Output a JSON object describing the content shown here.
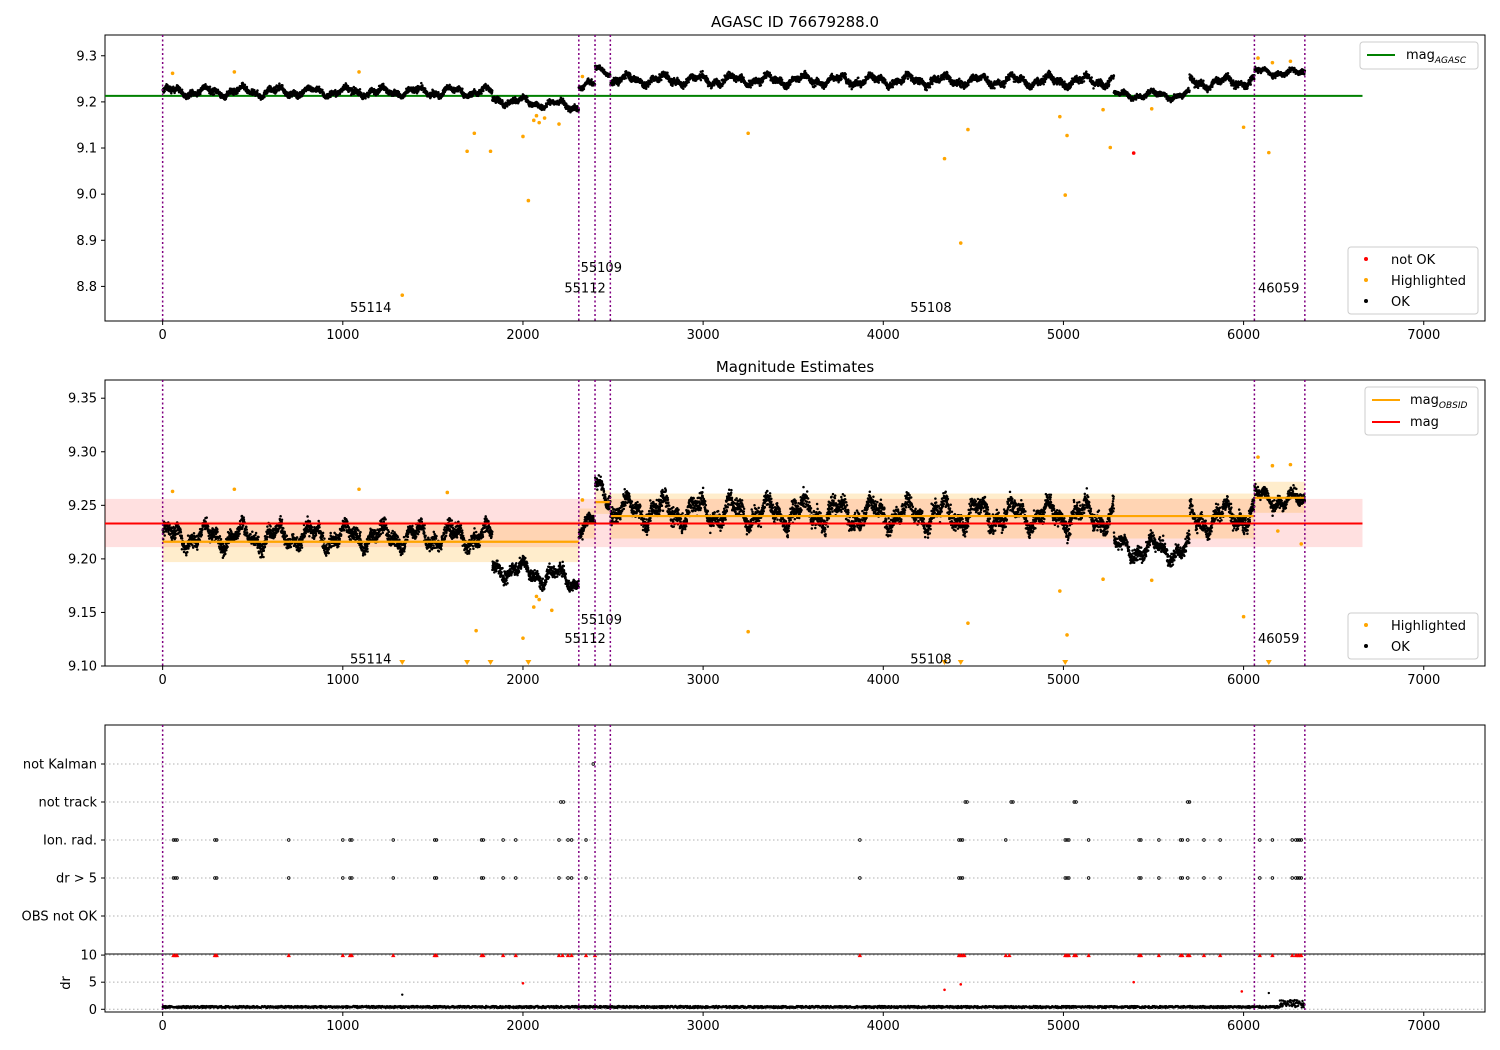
{
  "figure": {
    "title": "AGASC ID 76679288.0",
    "colors": {
      "ok": "#000000",
      "highlighted": "#ffa500",
      "not_ok": "#ff0000",
      "obsid_boundary": "#800080",
      "mag_agasc": "#008000",
      "mag_obsid": "#ffa500",
      "mag": "#ff0000",
      "grid": "#b0b0b0"
    }
  },
  "chart_data": [
    {
      "type": "scatter",
      "title": "AGASC ID 76679288.0",
      "xlim": [
        -320,
        7340
      ],
      "ylim": [
        8.725,
        9.345
      ],
      "xticks": [
        0,
        1000,
        2000,
        3000,
        4000,
        5000,
        6000,
        7000
      ],
      "yticks": [
        8.8,
        8.9,
        9.0,
        9.1,
        9.2,
        9.3
      ],
      "ytick_labels": [
        "8.8",
        "8.9",
        "9.0",
        "9.1",
        "9.2",
        "9.3"
      ],
      "legend_upper": {
        "position": "upper-right",
        "entries": [
          {
            "label": "mag",
            "sub": "AGASC",
            "kind": "line",
            "color": "#008000"
          }
        ]
      },
      "legend_lower": {
        "position": "lower-right",
        "entries": [
          {
            "label": "not OK",
            "kind": "dot",
            "color": "#ff0000"
          },
          {
            "label": "Highlighted",
            "kind": "dot",
            "color": "#ffa500"
          },
          {
            "label": "OK",
            "kind": "dot",
            "color": "#000000"
          }
        ]
      },
      "hlines": [
        {
          "name": "mag_AGASC",
          "y": 9.213,
          "x": [
            -320,
            6660
          ],
          "color": "#008000"
        }
      ],
      "obsid_labels": [
        {
          "text": "55114",
          "x": 1040,
          "y": 8.755
        },
        {
          "text": "55112",
          "x": 2230,
          "y": 8.798
        },
        {
          "text": "55109",
          "x": 2320,
          "y": 8.842
        },
        {
          "text": "55108",
          "x": 4150,
          "y": 8.755
        },
        {
          "text": "46059",
          "x": 6080,
          "y": 8.798
        }
      ],
      "ok_segments": [
        {
          "x": [
            0,
            1830
          ],
          "level": 9.222,
          "amp": 0.014,
          "ramp_to": 9.222
        },
        {
          "x": [
            1830,
            2310
          ],
          "level": 9.205,
          "amp": 0.013,
          "ramp_to": 9.19
        },
        {
          "x": [
            2310,
            2400
          ],
          "level": 9.235,
          "amp": 0.012,
          "ramp_to": 9.235
        },
        {
          "x": [
            2400,
            2485
          ],
          "level": 9.272,
          "amp": 0.01,
          "ramp_to": 9.265
        },
        {
          "x": [
            2485,
            5280
          ],
          "level": 9.248,
          "amp": 0.016,
          "ramp_to": 9.245
        },
        {
          "x": [
            5280,
            5700
          ],
          "level": 9.215,
          "amp": 0.012,
          "ramp_to": 9.215
        },
        {
          "x": [
            5700,
            6060
          ],
          "level": 9.24,
          "amp": 0.016,
          "ramp_to": 9.245
        },
        {
          "x": [
            6060,
            6340
          ],
          "level": 9.265,
          "amp": 0.011,
          "ramp_to": 9.262
        }
      ],
      "highlighted": [
        [
          55,
          9.262
        ],
        [
          398,
          9.265
        ],
        [
          1090,
          9.265
        ],
        [
          1330,
          8.781
        ],
        [
          1690,
          9.093
        ],
        [
          1730,
          9.132
        ],
        [
          1820,
          9.093
        ],
        [
          2000,
          9.125
        ],
        [
          2030,
          8.986
        ],
        [
          2060,
          9.16
        ],
        [
          2075,
          9.17
        ],
        [
          2090,
          9.155
        ],
        [
          2120,
          9.165
        ],
        [
          2200,
          9.152
        ],
        [
          2330,
          9.255
        ],
        [
          3250,
          9.132
        ],
        [
          4340,
          9.077
        ],
        [
          4430,
          8.894
        ],
        [
          4470,
          9.14
        ],
        [
          4980,
          9.168
        ],
        [
          5010,
          8.998
        ],
        [
          5020,
          9.127
        ],
        [
          5220,
          9.183
        ],
        [
          5260,
          9.101
        ],
        [
          5490,
          9.185
        ],
        [
          6000,
          9.145
        ],
        [
          6080,
          9.295
        ],
        [
          6140,
          9.09
        ],
        [
          6160,
          9.285
        ],
        [
          6260,
          9.288
        ]
      ],
      "not_ok": [
        [
          5390,
          9.089
        ]
      ],
      "xlabel": "",
      "ylabel": ""
    },
    {
      "type": "scatter",
      "title": "Magnitude Estimates",
      "xlim": [
        -320,
        7340
      ],
      "ylim": [
        9.1,
        9.367
      ],
      "xticks": [
        0,
        1000,
        2000,
        3000,
        4000,
        5000,
        6000,
        7000
      ],
      "yticks": [
        9.1,
        9.15,
        9.2,
        9.25,
        9.3,
        9.35
      ],
      "ytick_labels": [
        "9.10",
        "9.15",
        "9.20",
        "9.25",
        "9.30",
        "9.35"
      ],
      "legend_upper": {
        "position": "upper-right",
        "entries": [
          {
            "label": "mag",
            "sub": "OBSID",
            "kind": "line",
            "color": "#ffa500"
          },
          {
            "label": "mag",
            "kind": "line",
            "color": "#ff0000"
          }
        ]
      },
      "legend_lower": {
        "position": "lower-right",
        "entries": [
          {
            "label": "Highlighted",
            "kind": "dot",
            "color": "#ffa500"
          },
          {
            "label": "OK",
            "kind": "dot",
            "color": "#000000"
          }
        ]
      },
      "mag_band": {
        "y": 9.233,
        "lo": 9.211,
        "hi": 9.256,
        "x": [
          -320,
          6660
        ]
      },
      "obsid_steps": [
        {
          "x": [
            0,
            2310
          ],
          "y": 9.216,
          "lo": 9.197,
          "hi": 9.235
        },
        {
          "x": [
            2310,
            2400
          ],
          "y": 9.233,
          "lo": 9.219,
          "hi": 9.247
        },
        {
          "x": [
            2400,
            2485
          ],
          "y": 9.253,
          "lo": 9.242,
          "hi": 9.264
        },
        {
          "x": [
            2485,
            6060
          ],
          "y": 9.24,
          "lo": 9.219,
          "hi": 9.261
        },
        {
          "x": [
            6060,
            6340
          ],
          "y": 9.257,
          "lo": 9.243,
          "hi": 9.272
        }
      ],
      "obsid_labels": [
        {
          "text": "55114",
          "x": 1040,
          "y": 9.107
        },
        {
          "text": "55112",
          "x": 2230,
          "y": 9.126
        },
        {
          "text": "55109",
          "x": 2320,
          "y": 9.144
        },
        {
          "text": "55108",
          "x": 4150,
          "y": 9.107
        },
        {
          "text": "46059",
          "x": 6080,
          "y": 9.126
        }
      ],
      "ok_segments": [
        {
          "x": [
            0,
            1830
          ],
          "level": 9.221,
          "amp": 0.015,
          "ramp_to": 9.221
        },
        {
          "x": [
            1830,
            2310
          ],
          "level": 9.193,
          "amp": 0.013,
          "ramp_to": 9.18
        },
        {
          "x": [
            2310,
            2400
          ],
          "level": 9.23,
          "amp": 0.012,
          "ramp_to": 9.232
        },
        {
          "x": [
            2400,
            2485
          ],
          "level": 9.268,
          "amp": 0.013,
          "ramp_to": 9.262
        },
        {
          "x": [
            2485,
            5280
          ],
          "level": 9.245,
          "amp": 0.018,
          "ramp_to": 9.24
        },
        {
          "x": [
            5280,
            5700
          ],
          "level": 9.21,
          "amp": 0.014,
          "ramp_to": 9.208
        },
        {
          "x": [
            5700,
            6060
          ],
          "level": 9.236,
          "amp": 0.017,
          "ramp_to": 9.242
        },
        {
          "x": [
            6060,
            6340
          ],
          "level": 9.258,
          "amp": 0.012,
          "ramp_to": 9.253
        }
      ],
      "highlighted": [
        [
          55,
          9.263
        ],
        [
          398,
          9.265
        ],
        [
          1090,
          9.265
        ],
        [
          1580,
          9.262
        ],
        [
          1740,
          9.133
        ],
        [
          2000,
          9.126
        ],
        [
          2060,
          9.155
        ],
        [
          2075,
          9.165
        ],
        [
          2090,
          9.162
        ],
        [
          2160,
          9.152
        ],
        [
          2330,
          9.255
        ],
        [
          3250,
          9.132
        ],
        [
          4470,
          9.14
        ],
        [
          4980,
          9.17
        ],
        [
          5020,
          9.129
        ],
        [
          5220,
          9.181
        ],
        [
          5490,
          9.18
        ],
        [
          6000,
          9.146
        ],
        [
          6080,
          9.295
        ],
        [
          6160,
          9.287
        ],
        [
          6260,
          9.288
        ],
        [
          6320,
          9.214
        ],
        [
          6190,
          9.226
        ]
      ],
      "below_range": [
        1330,
        1690,
        1820,
        2030,
        4340,
        4430,
        5010,
        6140
      ],
      "xlabel": "",
      "ylabel": ""
    },
    {
      "type": "scatter",
      "title": "",
      "xlim": [
        -320,
        7340
      ],
      "xticks": [
        0,
        1000,
        2000,
        3000,
        4000,
        5000,
        6000,
        7000
      ],
      "flag_rows": [
        "not Kalman",
        "not track",
        "Ion. rad.",
        "dr > 5",
        "OBS not OK"
      ],
      "flags": {
        "not Kalman": [
          2390
        ],
        "not track": [
          2210,
          2225,
          4455,
          4465,
          4710,
          4720,
          5060,
          5070,
          5690,
          5700
        ],
        "Ion. rad.": [
          60,
          70,
          80,
          290,
          300,
          700,
          1000,
          1040,
          1050,
          1280,
          1510,
          1520,
          1770,
          1780,
          1890,
          1960,
          2200,
          2250,
          2270,
          2350,
          3870,
          4420,
          4430,
          4440,
          4680,
          5010,
          5020,
          5030,
          5140,
          5420,
          5430,
          5530,
          5650,
          5660,
          5690,
          5780,
          5870,
          6090,
          6160,
          6270,
          6290,
          6300,
          6310,
          6320
        ],
        "dr > 5": [
          60,
          70,
          80,
          290,
          300,
          700,
          1000,
          1040,
          1050,
          1280,
          1510,
          1520,
          1770,
          1780,
          1890,
          1960,
          2200,
          2250,
          2270,
          2350,
          3870,
          4420,
          4430,
          4440,
          5010,
          5020,
          5030,
          5140,
          5420,
          5430,
          5530,
          5650,
          5660,
          5690,
          5780,
          5870,
          6090,
          6160,
          6270,
          6290,
          6300,
          6310,
          6320
        ],
        "OBS not OK": []
      }
    },
    {
      "type": "scatter",
      "ylabel": "dr",
      "xlim": [
        -320,
        7340
      ],
      "ylim": [
        -0.5,
        10.2
      ],
      "yticks": [
        0,
        5,
        10
      ],
      "xticks": [
        0,
        1000,
        2000,
        3000,
        4000,
        5000,
        6000,
        7000
      ],
      "clipped_top_value": 10,
      "clipped_x": [
        60,
        70,
        80,
        290,
        300,
        700,
        1000,
        1040,
        1050,
        1280,
        1510,
        1520,
        1770,
        1780,
        1890,
        1960,
        2200,
        2220,
        2250,
        2270,
        2350,
        2400,
        3870,
        4420,
        4430,
        4440,
        4450,
        4680,
        4700,
        5010,
        5020,
        5030,
        5060,
        5070,
        5140,
        5420,
        5430,
        5530,
        5650,
        5660,
        5690,
        5700,
        5780,
        5870,
        6090,
        6160,
        6270,
        6290,
        6300,
        6310,
        6320
      ],
      "red_points": [
        [
          2000,
          4.8
        ],
        [
          4340,
          3.6
        ],
        [
          4430,
          4.6
        ],
        [
          5390,
          5.0
        ],
        [
          5990,
          3.3
        ]
      ],
      "black_points": [
        [
          1330,
          2.7
        ],
        [
          6140,
          3.0
        ]
      ],
      "baseline": {
        "level": 0.25,
        "amp": 0.35,
        "x": [
          0,
          6340
        ]
      }
    }
  ],
  "obsid_boundaries": [
    0,
    2310,
    2400,
    2485,
    6060,
    6340
  ]
}
